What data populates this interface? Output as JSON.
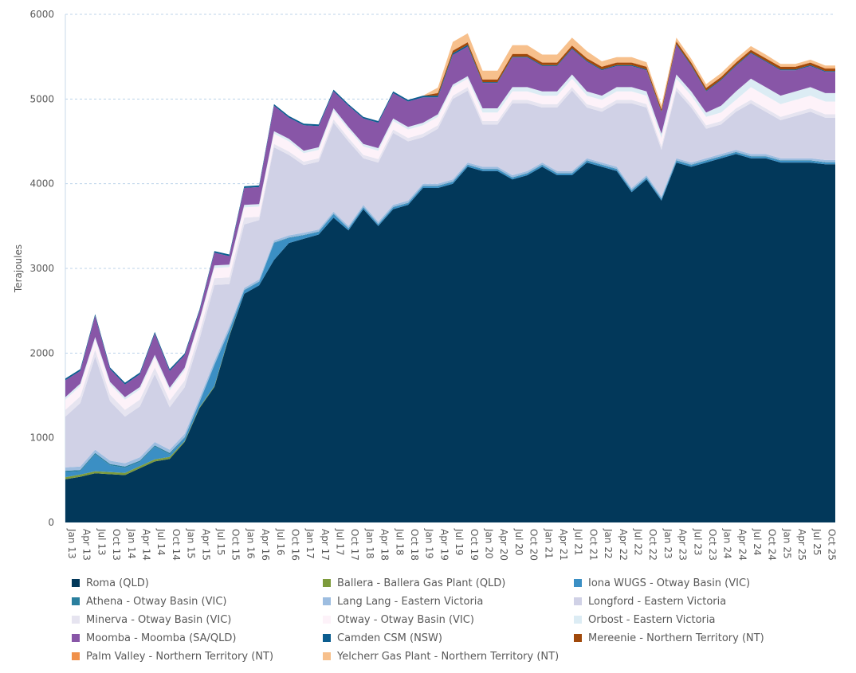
{
  "chart_data": {
    "type": "area",
    "stacked": true,
    "ylabel": "Terajoules",
    "xlabel": "",
    "ylim": [
      0,
      6000
    ],
    "yticks": [
      0,
      1000,
      2000,
      3000,
      4000,
      5000,
      6000
    ],
    "grid": true,
    "legend_position": "bottom",
    "categories": [
      "Jan 13",
      "Apr 13",
      "Jul 13",
      "Oct 13",
      "Jan 14",
      "Apr 14",
      "Jul 14",
      "Oct 14",
      "Jan 15",
      "Apr 15",
      "Jul 15",
      "Oct 15",
      "Jan 16",
      "Apr 16",
      "Jul 16",
      "Oct 16",
      "Jan 17",
      "Apr 17",
      "Jul 17",
      "Oct 17",
      "Jan 18",
      "Apr 18",
      "Jul 18",
      "Oct 18",
      "Jan 19",
      "Apr 19",
      "Jul 19",
      "Oct 19",
      "Jan 20",
      "Apr 20",
      "Jul 20",
      "Oct 20",
      "Jan 21",
      "Apr 21",
      "Jul 21",
      "Oct 21",
      "Jan 22",
      "Apr 22",
      "Jul 22",
      "Oct 22",
      "Jan 23",
      "Apr 23",
      "Jul 23",
      "Oct 23",
      "Jan 24",
      "Apr 24",
      "Jul 24",
      "Oct 24",
      "Jan 25",
      "Apr 25",
      "Jul 25",
      "Oct 25"
    ],
    "series": [
      {
        "name": "Roma (QLD)",
        "color": "#02385a",
        "values": [
          510,
          540,
          580,
          570,
          560,
          640,
          720,
          750,
          950,
          1350,
          1600,
          2200,
          2700,
          2800,
          3100,
          3300,
          3350,
          3400,
          3600,
          3450,
          3700,
          3500,
          3700,
          3750,
          3950,
          3950,
          4000,
          4200,
          4150,
          4150,
          4050,
          4100,
          4200,
          4100,
          4100,
          4250,
          4200,
          4150,
          3900,
          4050,
          3800,
          4250,
          4200,
          4250,
          4300,
          4350,
          4300,
          4300,
          4250,
          4250,
          4250,
          4230
        ]
      },
      {
        "name": "Ballera - Ballera Gas Plant (QLD)",
        "color": "#7d9b3c",
        "values": [
          25,
          25,
          25,
          25,
          25,
          25,
          25,
          25,
          10,
          10,
          10,
          10,
          0,
          0,
          0,
          0,
          0,
          0,
          0,
          0,
          0,
          0,
          0,
          0,
          0,
          0,
          0,
          0,
          0,
          0,
          0,
          0,
          0,
          0,
          0,
          0,
          0,
          0,
          0,
          0,
          0,
          0,
          0,
          0,
          0,
          0,
          0,
          0,
          0,
          0,
          0,
          0
        ]
      },
      {
        "name": "Iona WUGS - Otway Basin (VIC)",
        "color": "#3b8fc4",
        "values": [
          60,
          40,
          200,
          80,
          60,
          50,
          150,
          30,
          40,
          60,
          250,
          60,
          40,
          40,
          200,
          60,
          40,
          30,
          40,
          20,
          20,
          20,
          20,
          20,
          20,
          20,
          20,
          20,
          20,
          20,
          20,
          20,
          20,
          20,
          20,
          20,
          20,
          20,
          20,
          20,
          20,
          20,
          20,
          20,
          20,
          20,
          20,
          20,
          20,
          20,
          20,
          20
        ]
      },
      {
        "name": "Athena - Otway Basin (VIC)",
        "color": "#2a7f9e",
        "values": [
          15,
          15,
          15,
          15,
          15,
          15,
          15,
          15,
          5,
          5,
          5,
          5,
          5,
          5,
          5,
          5,
          5,
          5,
          5,
          5,
          5,
          5,
          5,
          5,
          5,
          5,
          5,
          5,
          5,
          5,
          5,
          5,
          5,
          5,
          5,
          5,
          5,
          5,
          5,
          5,
          5,
          5,
          5,
          5,
          5,
          5,
          5,
          5,
          5,
          5,
          5,
          5
        ]
      },
      {
        "name": "Lang Lang - Eastern Victoria",
        "color": "#9dbde0",
        "values": [
          40,
          40,
          40,
          40,
          40,
          40,
          40,
          40,
          40,
          40,
          40,
          40,
          25,
          25,
          25,
          25,
          25,
          25,
          25,
          25,
          25,
          25,
          25,
          25,
          25,
          25,
          25,
          25,
          25,
          25,
          25,
          25,
          25,
          25,
          25,
          25,
          25,
          25,
          25,
          25,
          25,
          25,
          25,
          25,
          25,
          25,
          25,
          25,
          25,
          25,
          25,
          25
        ]
      },
      {
        "name": "Longford - Eastern Victoria",
        "color": "#d0d1e6",
        "values": [
          600,
          750,
          1100,
          700,
          550,
          600,
          800,
          500,
          550,
          700,
          900,
          500,
          750,
          700,
          1100,
          950,
          800,
          800,
          1050,
          1000,
          550,
          700,
          850,
          700,
          550,
          650,
          950,
          850,
          500,
          500,
          850,
          800,
          650,
          750,
          950,
          600,
          600,
          750,
          1000,
          800,
          550,
          800,
          650,
          350,
          350,
          450,
          600,
          500,
          450,
          500,
          550,
          500
        ]
      },
      {
        "name": "Minerva - Otway Basin (VIC)",
        "color": "#e6e4f0",
        "values": [
          80,
          80,
          80,
          80,
          80,
          80,
          80,
          80,
          80,
          80,
          80,
          80,
          80,
          40,
          40,
          40,
          40,
          40,
          40,
          40,
          40,
          40,
          40,
          40,
          40,
          40,
          40,
          40,
          40,
          40,
          40,
          40,
          40,
          40,
          40,
          40,
          40,
          40,
          40,
          40,
          40,
          40,
          40,
          40,
          40,
          40,
          40,
          40,
          40,
          40,
          40,
          40
        ]
      },
      {
        "name": "Otway - Otway Basin (VIC)",
        "color": "#fdf2f9",
        "values": [
          120,
          120,
          120,
          120,
          120,
          120,
          120,
          120,
          120,
          120,
          120,
          120,
          120,
          120,
          120,
          120,
          100,
          100,
          100,
          100,
          100,
          100,
          100,
          100,
          100,
          100,
          100,
          100,
          100,
          100,
          100,
          100,
          100,
          100,
          100,
          100,
          100,
          100,
          100,
          100,
          100,
          100,
          100,
          100,
          100,
          100,
          150,
          150,
          150,
          150,
          150,
          150
        ]
      },
      {
        "name": "Orbost - Eastern Victoria",
        "color": "#dcecf4",
        "values": [
          30,
          30,
          30,
          30,
          30,
          30,
          30,
          30,
          30,
          30,
          30,
          30,
          30,
          30,
          30,
          30,
          30,
          30,
          30,
          30,
          30,
          30,
          30,
          30,
          30,
          30,
          30,
          30,
          50,
          50,
          50,
          50,
          50,
          50,
          50,
          50,
          50,
          50,
          50,
          50,
          50,
          50,
          50,
          50,
          80,
          100,
          100,
          100,
          100,
          100,
          100,
          100
        ]
      },
      {
        "name": "Moomba - Moomba (SA/QLD)",
        "color": "#8856a7",
        "values": [
          200,
          150,
          250,
          150,
          150,
          150,
          250,
          200,
          150,
          100,
          150,
          100,
          200,
          200,
          300,
          250,
          300,
          250,
          200,
          250,
          300,
          300,
          300,
          300,
          300,
          200,
          350,
          350,
          300,
          300,
          350,
          350,
          300,
          300,
          300,
          350,
          300,
          250,
          250,
          250,
          250,
          350,
          300,
          250,
          300,
          300,
          300,
          300,
          300,
          250,
          250,
          250
        ]
      },
      {
        "name": "Camden CSM (NSW)",
        "color": "#0b5d8f",
        "values": [
          20,
          20,
          20,
          20,
          20,
          20,
          20,
          20,
          20,
          20,
          20,
          20,
          20,
          20,
          20,
          20,
          20,
          20,
          20,
          20,
          20,
          20,
          20,
          20,
          20,
          20,
          20,
          20,
          10,
          10,
          10,
          10,
          10,
          10,
          10,
          10,
          10,
          10,
          10,
          10,
          10,
          10,
          10,
          10,
          10,
          10,
          10,
          10,
          10,
          10,
          10,
          10
        ]
      },
      {
        "name": "Mereenie - Northern Territory (NT)",
        "color": "#a0490b",
        "values": [
          0,
          0,
          0,
          0,
          0,
          0,
          0,
          0,
          0,
          0,
          0,
          0,
          0,
          0,
          0,
          0,
          0,
          0,
          0,
          0,
          0,
          0,
          0,
          0,
          0,
          30,
          30,
          30,
          30,
          30,
          30,
          30,
          30,
          30,
          30,
          30,
          30,
          30,
          30,
          30,
          30,
          30,
          30,
          30,
          30,
          30,
          30,
          30,
          30,
          30,
          30,
          30
        ]
      },
      {
        "name": "Palm Valley - Northern Territory (NT)",
        "color": "#f0904a",
        "values": [
          0,
          0,
          0,
          0,
          0,
          0,
          0,
          0,
          0,
          0,
          0,
          0,
          0,
          0,
          0,
          0,
          0,
          0,
          0,
          0,
          0,
          0,
          0,
          0,
          0,
          5,
          5,
          5,
          5,
          5,
          5,
          5,
          5,
          5,
          5,
          5,
          5,
          5,
          5,
          5,
          5,
          5,
          5,
          5,
          5,
          5,
          5,
          5,
          5,
          5,
          5,
          5
        ]
      },
      {
        "name": "Yelcherr Gas Plant - Northern Territory (NT)",
        "color": "#f7c08c",
        "values": [
          0,
          0,
          0,
          0,
          0,
          0,
          0,
          0,
          0,
          0,
          0,
          0,
          0,
          0,
          0,
          0,
          0,
          0,
          0,
          0,
          0,
          0,
          0,
          0,
          0,
          60,
          100,
          100,
          100,
          100,
          100,
          100,
          90,
          90,
          90,
          80,
          60,
          60,
          60,
          50,
          40,
          40,
          40,
          40,
          40,
          40,
          40,
          40,
          30,
          30,
          30,
          30
        ]
      }
    ]
  }
}
